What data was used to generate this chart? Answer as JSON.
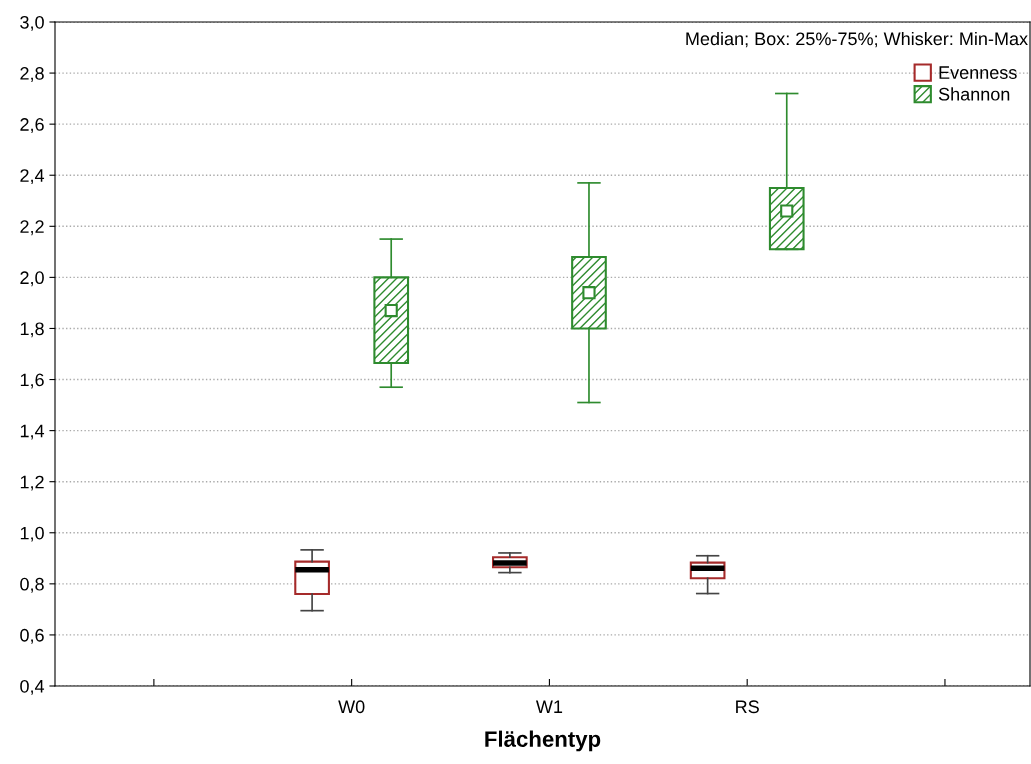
{
  "chart_data": {
    "type": "box",
    "xlabel": "Flächentyp",
    "categories": [
      null,
      "W0",
      "W1",
      "RS",
      null
    ],
    "ylim": [
      0.4,
      3.0
    ],
    "yticks": [
      {
        "value": 0.4,
        "label": "0,4"
      },
      {
        "value": 0.6,
        "label": "0,6"
      },
      {
        "value": 0.8,
        "label": "0,8"
      },
      {
        "value": 1.0,
        "label": "1,0"
      },
      {
        "value": 1.2,
        "label": "1,2"
      },
      {
        "value": 1.4,
        "label": "1,4"
      },
      {
        "value": 1.6,
        "label": "1,6"
      },
      {
        "value": 1.8,
        "label": "1,8"
      },
      {
        "value": 2.0,
        "label": "2,0"
      },
      {
        "value": 2.2,
        "label": "2,2"
      },
      {
        "value": 2.4,
        "label": "2,4"
      },
      {
        "value": 2.6,
        "label": "2,6"
      },
      {
        "value": 2.8,
        "label": "2,8"
      },
      {
        "value": 3.0,
        "label": "3,0"
      }
    ],
    "grid": "y",
    "legend": "top right",
    "annotations": [
      "Median; Box: 25%-75%; Whisker: Min-Max"
    ],
    "series": [
      {
        "name": "Evenness",
        "color": "#a52a2a",
        "marker": "none",
        "boxes": [
          null,
          {
            "low": 0.695,
            "q1": 0.76,
            "median": 0.855,
            "q3": 0.887,
            "high": 0.933
          },
          {
            "low": 0.844,
            "q1": 0.865,
            "median": 0.882,
            "q3": 0.904,
            "high": 0.921
          },
          {
            "low": 0.762,
            "q1": 0.822,
            "median": 0.861,
            "q3": 0.883,
            "high": 0.91
          },
          null
        ]
      },
      {
        "name": "Shannon",
        "color": "#2e8b2e",
        "marker": "square",
        "boxes": [
          null,
          {
            "low": 1.57,
            "q1": 1.665,
            "median": 1.87,
            "q3": 2.0,
            "high": 2.15
          },
          {
            "low": 1.51,
            "q1": 1.8,
            "median": 1.94,
            "q3": 2.08,
            "high": 2.37
          },
          {
            "low": 2.11,
            "q1": 2.11,
            "median": 2.26,
            "q3": 2.35,
            "high": 2.72
          },
          null
        ]
      }
    ]
  }
}
